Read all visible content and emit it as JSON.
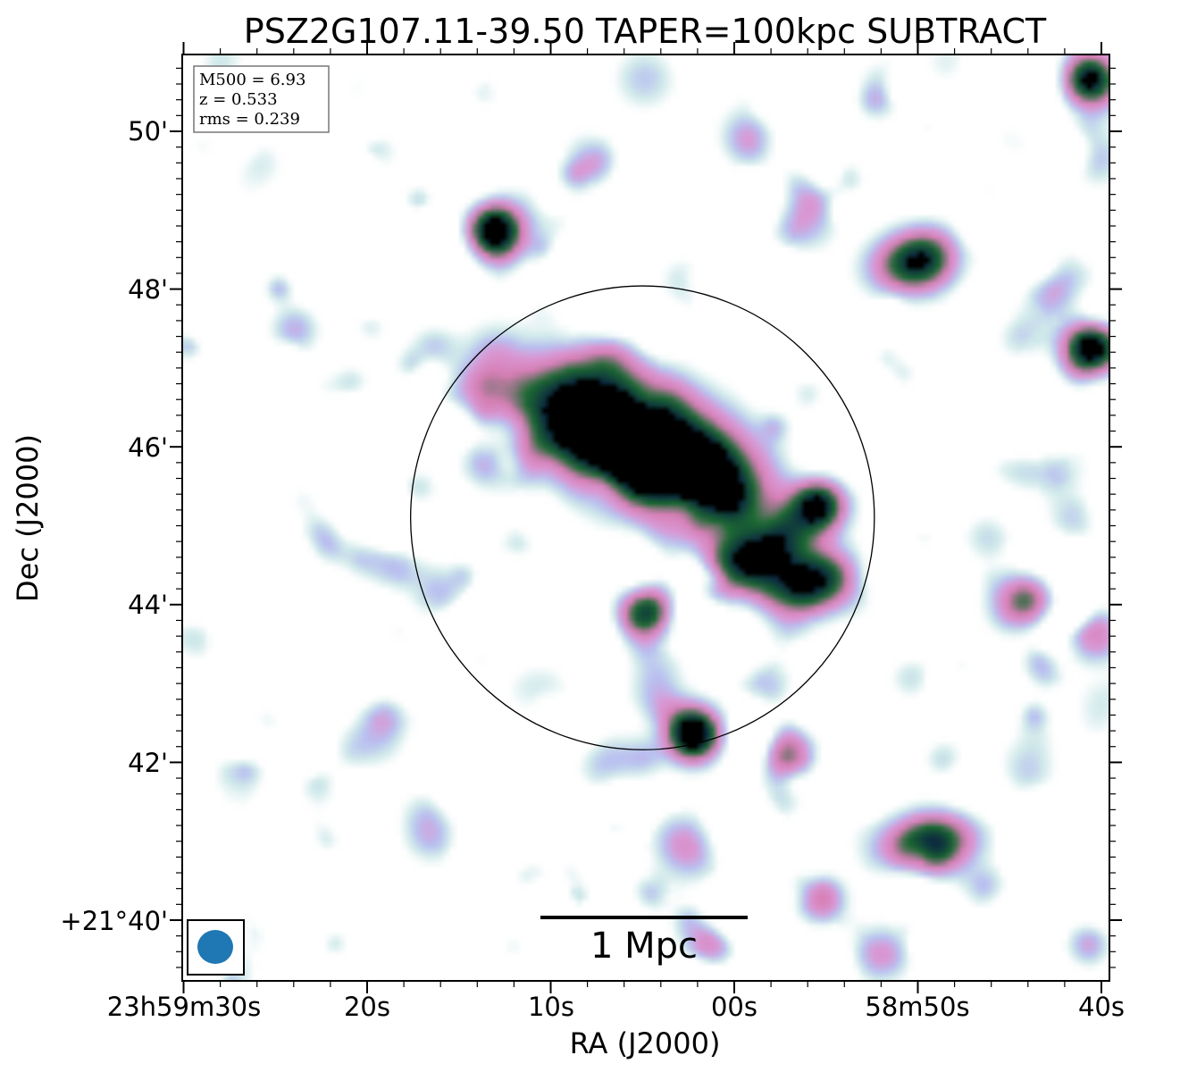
{
  "chart_data": {
    "type": "heatmap",
    "title": "PSZ2G107.11-39.50 TAPER=100kpc SUBTRACT",
    "xlabel": "RA (J2000)",
    "ylabel": "Dec (J2000)",
    "x_ticks": [
      "23h59m30s",
      "20s",
      "10s",
      "00s",
      "58m50s",
      "40s"
    ],
    "y_ticks": [
      "+21°40'",
      "42'",
      "44'",
      "46'",
      "48'",
      "50'"
    ],
    "info": {
      "mass": "M500 = 6.93",
      "redshift": "z = 0.533",
      "rms": "rms = 0.239"
    },
    "scalebar_label": "1 Mpc",
    "colormap": [
      "#ffffff",
      "#cfe9ea",
      "#b9c0f0",
      "#d99ad6",
      "#d77fb5",
      "#1d6b33",
      "#0c2a40",
      "#000000"
    ],
    "sources": [
      {
        "ra_s": 5.6,
        "dec_min": 46.1,
        "peak": 9.0,
        "kind": "saturated-extended"
      },
      {
        "ra_s": -0.6,
        "dec_min": 44.6,
        "peak": 4.5,
        "kind": "extended"
      },
      {
        "ra_s": -3.6,
        "dec_min": 44.3,
        "peak": 4.0,
        "kind": "extended"
      },
      {
        "ra_s": -4.4,
        "dec_min": 45.3,
        "peak": 4.8,
        "kind": "compact"
      },
      {
        "ra_s": 13.2,
        "dec_min": 48.8,
        "peak": 5.5,
        "kind": "compact"
      },
      {
        "ra_s": 2.4,
        "dec_min": 42.4,
        "peak": 6.0,
        "kind": "compact"
      },
      {
        "ra_s": 5.2,
        "dec_min": 43.9,
        "peak": 3.0,
        "kind": "compact"
      },
      {
        "ra_s": -10.0,
        "dec_min": 48.4,
        "peak": 5.0,
        "kind": "extended"
      },
      {
        "ra_s": -19.4,
        "dec_min": 47.3,
        "peak": 5.2,
        "kind": "compact"
      },
      {
        "ra_s": -19.2,
        "dec_min": 50.7,
        "peak": 4.8,
        "kind": "compact"
      },
      {
        "ra_s": -10.4,
        "dec_min": 41.0,
        "peak": 4.6,
        "kind": "extended"
      },
      {
        "ra_s": -15.8,
        "dec_min": 44.1,
        "peak": 3.0,
        "kind": "compact"
      },
      {
        "ra_s": -19.2,
        "dec_min": 43.7,
        "peak": 2.2,
        "kind": "compact"
      },
      {
        "ra_s": -2.6,
        "dec_min": 42.1,
        "peak": 2.6,
        "kind": "compact"
      }
    ],
    "circle": {
      "center_ra_s": 5.0,
      "center_dec_min": 45.1,
      "radius_arcmin": 2.94
    },
    "beam": {
      "shape": "ellipse",
      "color": "#1f77b4"
    },
    "grid": false
  }
}
